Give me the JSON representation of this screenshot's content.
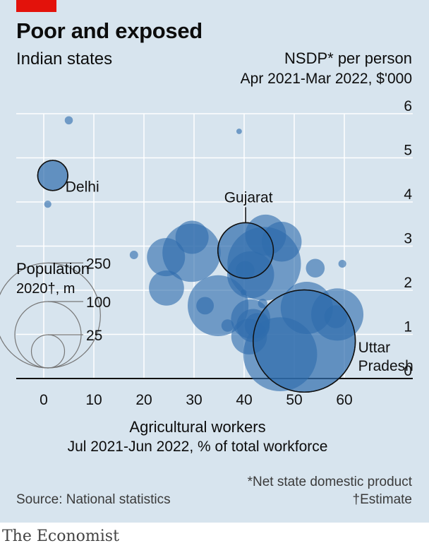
{
  "header": {
    "title": "Poor and exposed",
    "subtitle": "Indian states"
  },
  "footer": {
    "footnote_asterisk": "*Net state domestic product",
    "footnote_dagger": "†Estimate",
    "source": "Source: National statistics",
    "brand": "The Economist"
  },
  "colors": {
    "background": "#d7e4ee",
    "bubble": "#2f6cad",
    "highlight_stroke": "#111111",
    "gridline": "#ffffff",
    "accent": "#e3120b"
  },
  "chart_data": {
    "type": "scatter",
    "title": "Poor and exposed",
    "subtitle": "Indian states",
    "xlabel": "Agricultural workers",
    "xlabel_sub": "Jul 2021-Jun 2022, % of total workforce",
    "ylabel": "NSDP* per person",
    "ylabel_sub": "Apr 2021-Mar 2022, $'000",
    "xlim": [
      0,
      70
    ],
    "ylim": [
      0,
      6
    ],
    "xticks": [
      0,
      10,
      20,
      30,
      40,
      50,
      60
    ],
    "yticks": [
      0,
      1,
      2,
      3,
      4,
      5,
      6
    ],
    "grid": true,
    "size_legend": {
      "title": "Population",
      "subtitle": "2020†, m",
      "values": [
        250,
        100,
        25
      ],
      "labels": [
        "250",
        "100",
        "25"
      ]
    },
    "points": [
      {
        "label": "Delhi",
        "x": 1.8,
        "y": 4.6,
        "pop": 20.6,
        "highlight": true
      },
      {
        "label": "Gujarat",
        "x": 40.3,
        "y": 2.9,
        "pop": 70.1,
        "highlight": true
      },
      {
        "label": "Uttar Pradesh",
        "x": 52.0,
        "y": 0.85,
        "pop": 237.4,
        "highlight": true
      },
      {
        "label": "",
        "x": 5.0,
        "y": 5.85,
        "pop": 1.5
      },
      {
        "label": "",
        "x": 0.8,
        "y": 3.95,
        "pop": 1.2
      },
      {
        "label": "",
        "x": 39.0,
        "y": 5.6,
        "pop": 0.7
      },
      {
        "label": "",
        "x": 18.0,
        "y": 2.8,
        "pop": 1.6
      },
      {
        "label": "",
        "x": 59.6,
        "y": 2.6,
        "pop": 1.4
      },
      {
        "label": "",
        "x": 24.4,
        "y": 2.75,
        "pop": 33
      },
      {
        "label": "",
        "x": 29.6,
        "y": 3.2,
        "pop": 25
      },
      {
        "label": "",
        "x": 29.5,
        "y": 2.85,
        "pop": 77
      },
      {
        "label": "",
        "x": 24.5,
        "y": 2.05,
        "pop": 28
      },
      {
        "label": "",
        "x": 44.3,
        "y": 3.25,
        "pop": 38
      },
      {
        "label": "",
        "x": 47.5,
        "y": 3.1,
        "pop": 36
      },
      {
        "label": "",
        "x": 44.0,
        "y": 2.6,
        "pop": 123
      },
      {
        "label": "",
        "x": 41.3,
        "y": 2.35,
        "pop": 50
      },
      {
        "label": "",
        "x": 40.2,
        "y": 2.45,
        "pop": 8
      },
      {
        "label": "",
        "x": 54.2,
        "y": 2.5,
        "pop": 8
      },
      {
        "label": "",
        "x": 39.9,
        "y": 1.95,
        "pop": 0.8
      },
      {
        "label": "",
        "x": 34.8,
        "y": 1.65,
        "pop": 84
      },
      {
        "label": "",
        "x": 32.2,
        "y": 1.65,
        "pop": 7
      },
      {
        "label": "",
        "x": 36.7,
        "y": 1.2,
        "pop": 3.5
      },
      {
        "label": "",
        "x": 43.7,
        "y": 1.7,
        "pop": 2
      },
      {
        "label": "",
        "x": 41.3,
        "y": 1.35,
        "pop": 35
      },
      {
        "label": "",
        "x": 41.8,
        "y": 1.2,
        "pop": 25
      },
      {
        "label": "",
        "x": 42.6,
        "y": 1.2,
        "pop": 14
      },
      {
        "label": "",
        "x": 41.0,
        "y": 0.95,
        "pop": 29
      },
      {
        "label": "",
        "x": 52.5,
        "y": 1.6,
        "pop": 62
      },
      {
        "label": "",
        "x": 58.6,
        "y": 1.45,
        "pop": 62
      },
      {
        "label": "",
        "x": 58.3,
        "y": 1.4,
        "pop": 12
      },
      {
        "label": "",
        "x": 47.2,
        "y": 0.55,
        "pop": 124
      }
    ]
  }
}
